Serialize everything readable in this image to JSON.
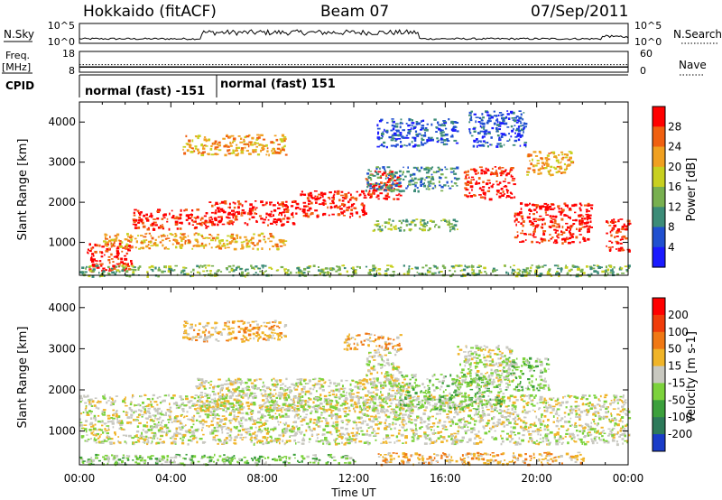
{
  "header": {
    "title": "Hokkaido (fitACF)",
    "beam": "Beam 07",
    "date": "07/Sep/2011"
  },
  "nsky_panel": {
    "left_label": "N.Sky",
    "right_label": "N.Search",
    "left_ticks": [
      "10^5",
      "10^0"
    ],
    "right_ticks": [
      "10^5",
      "10^0"
    ]
  },
  "freq_panel": {
    "left_label_1": "Freq.",
    "left_label_2": "[MHz]",
    "right_label": "Nave",
    "left_ticks": [
      "18",
      "8"
    ],
    "right_ticks": [
      "60",
      "0"
    ],
    "freq_value": 10.5,
    "nave_value": 22
  },
  "cpid_panel": {
    "label": "CPID",
    "segments": [
      {
        "start_hour": 0,
        "end_hour": 6,
        "text": "normal (fast) -151"
      },
      {
        "start_hour": 6,
        "end_hour": 24,
        "text": "normal (fast) 151"
      }
    ]
  },
  "chart_data": [
    {
      "type": "heatmap",
      "panel": "power",
      "xlabel": "",
      "ylabel": "Slant Range [km]",
      "xlim": [
        0,
        24
      ],
      "ylim": [
        180,
        4500
      ],
      "yticks": [
        1000,
        2000,
        3000,
        4000
      ],
      "colorbar": {
        "label": "Power [dB]",
        "ticks": [
          "4",
          "8",
          "12",
          "16",
          "20",
          "24",
          "28"
        ],
        "colors": [
          "#1a1aff",
          "#2050d0",
          "#3c8c78",
          "#78b050",
          "#c8d020",
          "#f0a020",
          "#f06010",
          "#ff0000"
        ]
      },
      "bands": [
        {
          "t0": 0.3,
          "t1": 2.3,
          "r0": 300,
          "r1": 1000,
          "level": 7
        },
        {
          "t0": 2.3,
          "t1": 5.6,
          "r0": 1350,
          "r1": 1850,
          "level": 7
        },
        {
          "t0": 5.6,
          "t1": 9.5,
          "r0": 1450,
          "r1": 2050,
          "level": 7
        },
        {
          "t0": 9.5,
          "t1": 12.5,
          "r0": 1650,
          "r1": 2300,
          "level": 7
        },
        {
          "t0": 12.5,
          "t1": 14.0,
          "r0": 2100,
          "r1": 2800,
          "level": 7
        },
        {
          "t0": 16.8,
          "t1": 19.0,
          "r0": 2100,
          "r1": 2900,
          "level": 7
        },
        {
          "t0": 19.0,
          "t1": 22.4,
          "r0": 1000,
          "r1": 2000,
          "level": 7
        },
        {
          "t0": 23.0,
          "t1": 24.0,
          "r0": 800,
          "r1": 1600,
          "level": 7
        },
        {
          "t0": 1.0,
          "t1": 9.0,
          "r0": 850,
          "r1": 1250,
          "level": 5
        },
        {
          "t0": 4.5,
          "t1": 9.0,
          "r0": 3200,
          "r1": 3700,
          "level": 5
        },
        {
          "t0": 12.5,
          "t1": 16.5,
          "r0": 2300,
          "r1": 2900,
          "level": 2
        },
        {
          "t0": 12.8,
          "t1": 16.5,
          "r0": 1300,
          "r1": 1600,
          "level": 3
        },
        {
          "t0": 13.0,
          "t1": 16.5,
          "r0": 3400,
          "r1": 4100,
          "level": 1
        },
        {
          "t0": 17.0,
          "t1": 19.5,
          "r0": 3400,
          "r1": 4300,
          "level": 1
        },
        {
          "t0": 19.5,
          "t1": 21.5,
          "r0": 2700,
          "r1": 3300,
          "level": 5
        },
        {
          "t0": 0.0,
          "t1": 24.0,
          "r0": 180,
          "r1": 450,
          "level": 3
        }
      ]
    },
    {
      "type": "heatmap",
      "panel": "velocity",
      "xlabel": "Time UT",
      "ylabel": "Slant Range [km]",
      "xlim": [
        0,
        24
      ],
      "ylim": [
        180,
        4500
      ],
      "xticks": [
        "00:00",
        "04:00",
        "08:00",
        "12:00",
        "16:00",
        "20:00",
        "00:00"
      ],
      "yticks": [
        1000,
        2000,
        3000,
        4000
      ],
      "colorbar": {
        "label": "Velocity [m s-1]",
        "ticks": [
          "200",
          "100",
          "50",
          "15",
          "-15",
          "-50",
          "-100",
          "-200"
        ],
        "colors": [
          "#1a3cc8",
          "#2d7a5a",
          "#3ca03c",
          "#7cd23c",
          "#c8c8c0",
          "#f0b428",
          "#f07814",
          "#f03c0a",
          "#ff0000"
        ]
      },
      "bands": [
        {
          "t0": 0.0,
          "t1": 24.0,
          "r0": 700,
          "r1": 1900,
          "level": 4
        },
        {
          "t0": 5.0,
          "t1": 14.5,
          "r0": 1500,
          "r1": 2300,
          "level": 4
        },
        {
          "t0": 12.5,
          "t1": 14.0,
          "r0": 2100,
          "r1": 3000,
          "level": 4
        },
        {
          "t0": 16.5,
          "t1": 19.0,
          "r0": 2100,
          "r1": 3100,
          "level": 4
        },
        {
          "t0": 14.0,
          "t1": 18.5,
          "r0": 1500,
          "r1": 2400,
          "level": 3
        },
        {
          "t0": 18.5,
          "t1": 20.5,
          "r0": 2000,
          "r1": 2800,
          "level": 3
        },
        {
          "t0": 4.5,
          "t1": 9.0,
          "r0": 3200,
          "r1": 3700,
          "level": 5
        },
        {
          "t0": 11.5,
          "t1": 14.0,
          "r0": 3000,
          "r1": 3400,
          "level": 5
        },
        {
          "t0": 13.0,
          "t1": 22.0,
          "r0": 200,
          "r1": 500,
          "level": 5
        },
        {
          "t0": 0.0,
          "t1": 12.0,
          "r0": 200,
          "r1": 450,
          "level": 3
        }
      ]
    }
  ]
}
